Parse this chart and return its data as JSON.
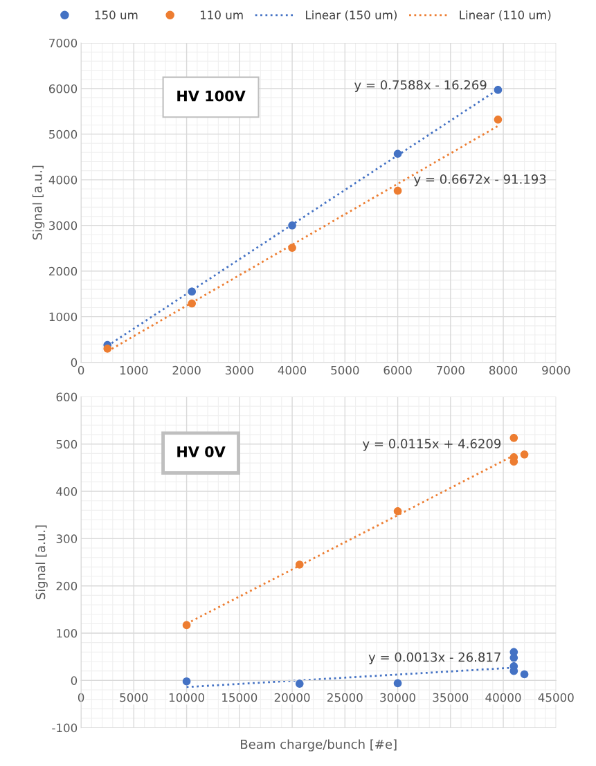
{
  "chart_data": [
    {
      "type": "scatter",
      "xlim": [
        0,
        9000
      ],
      "xticks": [
        0,
        1000,
        2000,
        3000,
        4000,
        5000,
        6000,
        7000,
        8000,
        9000
      ],
      "ylim": [
        0,
        7000
      ],
      "yticks": [
        0,
        1000,
        2000,
        3000,
        4000,
        5000,
        6000,
        7000
      ],
      "ylabel": "Signal [a.u.]",
      "grid": true,
      "legend": "top",
      "series": [
        {
          "name": "150 um",
          "marker": "circle",
          "color": "#4472c4",
          "x": [
            500,
            2100,
            4000,
            6000,
            7900
          ],
          "values": [
            380,
            1550,
            3000,
            4570,
            5970
          ]
        },
        {
          "name": "110 um",
          "marker": "circle",
          "color": "#ed7d31",
          "x": [
            500,
            2100,
            4000,
            6000,
            7900
          ],
          "values": [
            300,
            1290,
            2510,
            3760,
            5320
          ]
        },
        {
          "name": "Linear (150 um)",
          "type": "line",
          "line_style": "dotted",
          "color": "#4472c4",
          "x": [
            500,
            7900
          ],
          "values": [
            360,
            5980
          ]
        },
        {
          "name": "Linear (110 um)",
          "type": "line",
          "line_style": "dotted",
          "color": "#ed7d31",
          "x": [
            500,
            7900
          ],
          "values": [
            240,
            5180
          ]
        }
      ],
      "annotations": [
        "HV 100V",
        "y = 0.7588x - 16.269",
        "y = 0.6672x - 91.193"
      ]
    },
    {
      "type": "scatter",
      "xlim": [
        0,
        45000
      ],
      "xticks": [
        0,
        5000,
        10000,
        15000,
        20000,
        25000,
        30000,
        35000,
        40000,
        45000
      ],
      "ylim": [
        -100,
        600
      ],
      "yticks": [
        {
          "value": -100,
          "label": "-100"
        },
        0,
        100,
        200,
        300,
        400,
        500,
        600
      ],
      "xlabel": "Beam charge/bunch [#e]",
      "ylabel": "Signal [a.u.]",
      "grid": true,
      "series": [
        {
          "color": "#4472c4",
          "marker": "circle",
          "x": [
            10000,
            20700,
            30000,
            41000,
            41000,
            41000,
            41000,
            42000
          ],
          "values": [
            -2,
            -7,
            -6,
            60,
            48,
            30,
            20,
            13
          ]
        },
        {
          "color": "#ed7d31",
          "marker": "circle",
          "x": [
            10000,
            20700,
            30000,
            41000,
            41000,
            41000,
            42000
          ],
          "values": [
            117,
            245,
            358,
            513,
            472,
            463,
            478
          ]
        },
        {
          "type": "line",
          "line_style": "dotted",
          "color": "#4472c4",
          "x": [
            10000,
            41000
          ],
          "values": [
            -14,
            27
          ]
        },
        {
          "type": "line",
          "line_style": "dotted",
          "color": "#ed7d31",
          "x": [
            10000,
            41000
          ],
          "values": [
            120,
            476
          ]
        }
      ],
      "annotations": [
        "HV 0V",
        "y = 0.0115x + 4.6209",
        "y = 0.0013x - 26.817"
      ]
    }
  ]
}
